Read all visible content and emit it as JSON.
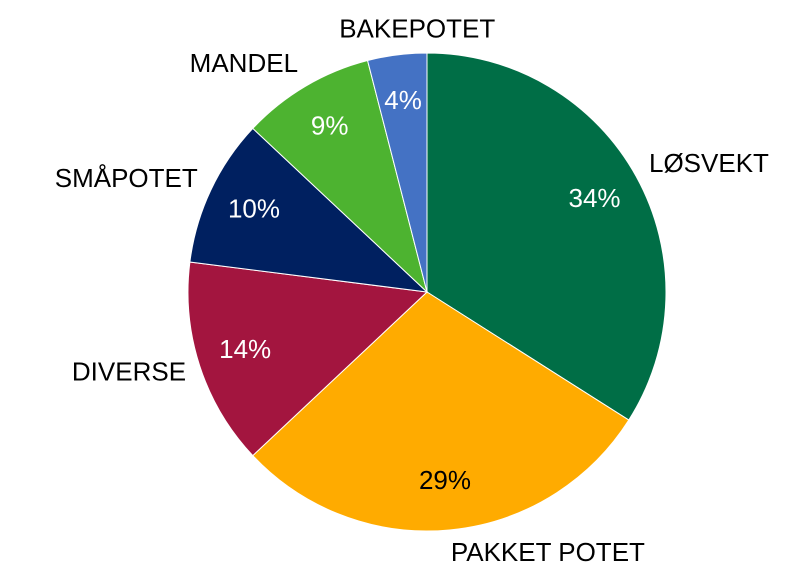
{
  "chart_data": {
    "type": "pie",
    "categories": [
      "LØSVEKT",
      "PAKKET POTET",
      "DIVERSE",
      "SMÅPOTET",
      "MANDEL",
      "BAKEPOTET"
    ],
    "values": [
      34,
      29,
      14,
      10,
      9,
      4
    ],
    "value_labels": [
      "34%",
      "29%",
      "14%",
      "10%",
      "9%",
      "4%"
    ],
    "colors": [
      "#006e46",
      "#ffab00",
      "#a3153f",
      "#002060",
      "#4db330",
      "#4472c4"
    ]
  }
}
